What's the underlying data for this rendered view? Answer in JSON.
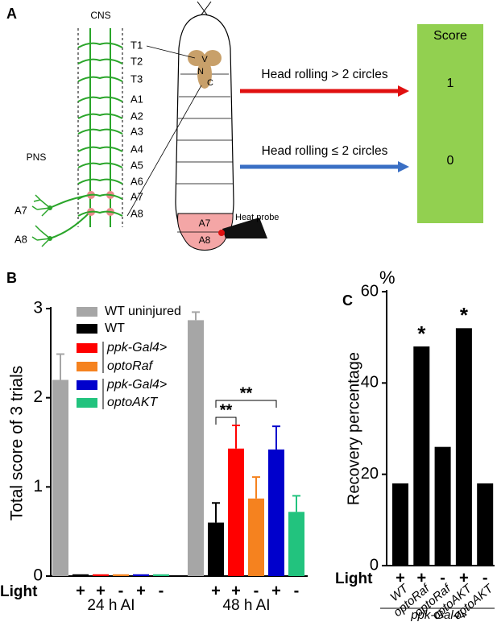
{
  "panel_labels": [
    "A",
    "B",
    "C"
  ],
  "diagram": {
    "cns_label": "CNS",
    "pns_label": "PNS",
    "segments": [
      "T1",
      "T2",
      "T3",
      "A1",
      "A2",
      "A3",
      "A4",
      "A5",
      "A6",
      "A7",
      "A8"
    ],
    "pns_neurons": [
      "A7",
      "A8"
    ],
    "vnc_letters": [
      "V",
      "N",
      "C"
    ],
    "probe_segments": [
      "A7",
      "A8"
    ],
    "probe_label": "Heat probe",
    "score_title": "Score",
    "behaviors": [
      {
        "text": "Head rolling > 2 circles",
        "score": 1
      },
      {
        "text": "Head rolling ≤ 2 circles",
        "score": 0
      }
    ]
  },
  "chart_data": [
    {
      "type": "bar",
      "y_label": "Total score of 3 trials",
      "categories": [
        "24 h AI",
        "48 h AI"
      ],
      "ylim": [
        0,
        3
      ],
      "yticks": [
        0,
        1,
        2,
        3
      ],
      "light_label": "Light",
      "series": [
        {
          "name": "WT uninjured",
          "color": "#a6a6a6",
          "values": [
            2.2,
            2.87
          ],
          "errors": [
            0.29,
            0.09
          ]
        },
        {
          "name": "WT",
          "color": "#000000",
          "light": "+",
          "values": [
            0.02,
            0.6
          ],
          "errors": [
            0,
            0.22
          ]
        },
        {
          "name": "ppk-Gal4>",
          "color": "#ff0000",
          "light": "+",
          "values": [
            0.02,
            1.43
          ],
          "errors": [
            0,
            0.26
          ]
        },
        {
          "name": "optoRaf",
          "color": "#f5821f",
          "light": "-",
          "values": [
            0.02,
            0.87
          ],
          "errors": [
            0,
            0.24
          ]
        },
        {
          "name": "ppk-Gal4>",
          "color": "#0000cc",
          "light": "+",
          "values": [
            0.02,
            1.42
          ],
          "errors": [
            0,
            0.26
          ]
        },
        {
          "name": "optoAKT",
          "color": "#22c37e",
          "light": "-",
          "values": [
            0.02,
            0.72
          ],
          "errors": [
            0,
            0.18
          ]
        }
      ],
      "annotations": [
        "**",
        "**"
      ]
    },
    {
      "type": "bar",
      "y_label": "Recovery percentage",
      "y_unit": "%",
      "categories": [
        "WT",
        "optoRaf",
        "optoRaf",
        "optoAKT",
        "optoAKT"
      ],
      "light": [
        "+",
        "+",
        "-",
        "+",
        "-"
      ],
      "light_label": "Light",
      "x_label": "ppk-Gal4>",
      "values": [
        18,
        48,
        26,
        52,
        18
      ],
      "color": "#000000",
      "ylim": [
        0,
        60
      ],
      "yticks": [
        0,
        20,
        40,
        60
      ],
      "annotations": [
        "*",
        "*"
      ]
    }
  ]
}
